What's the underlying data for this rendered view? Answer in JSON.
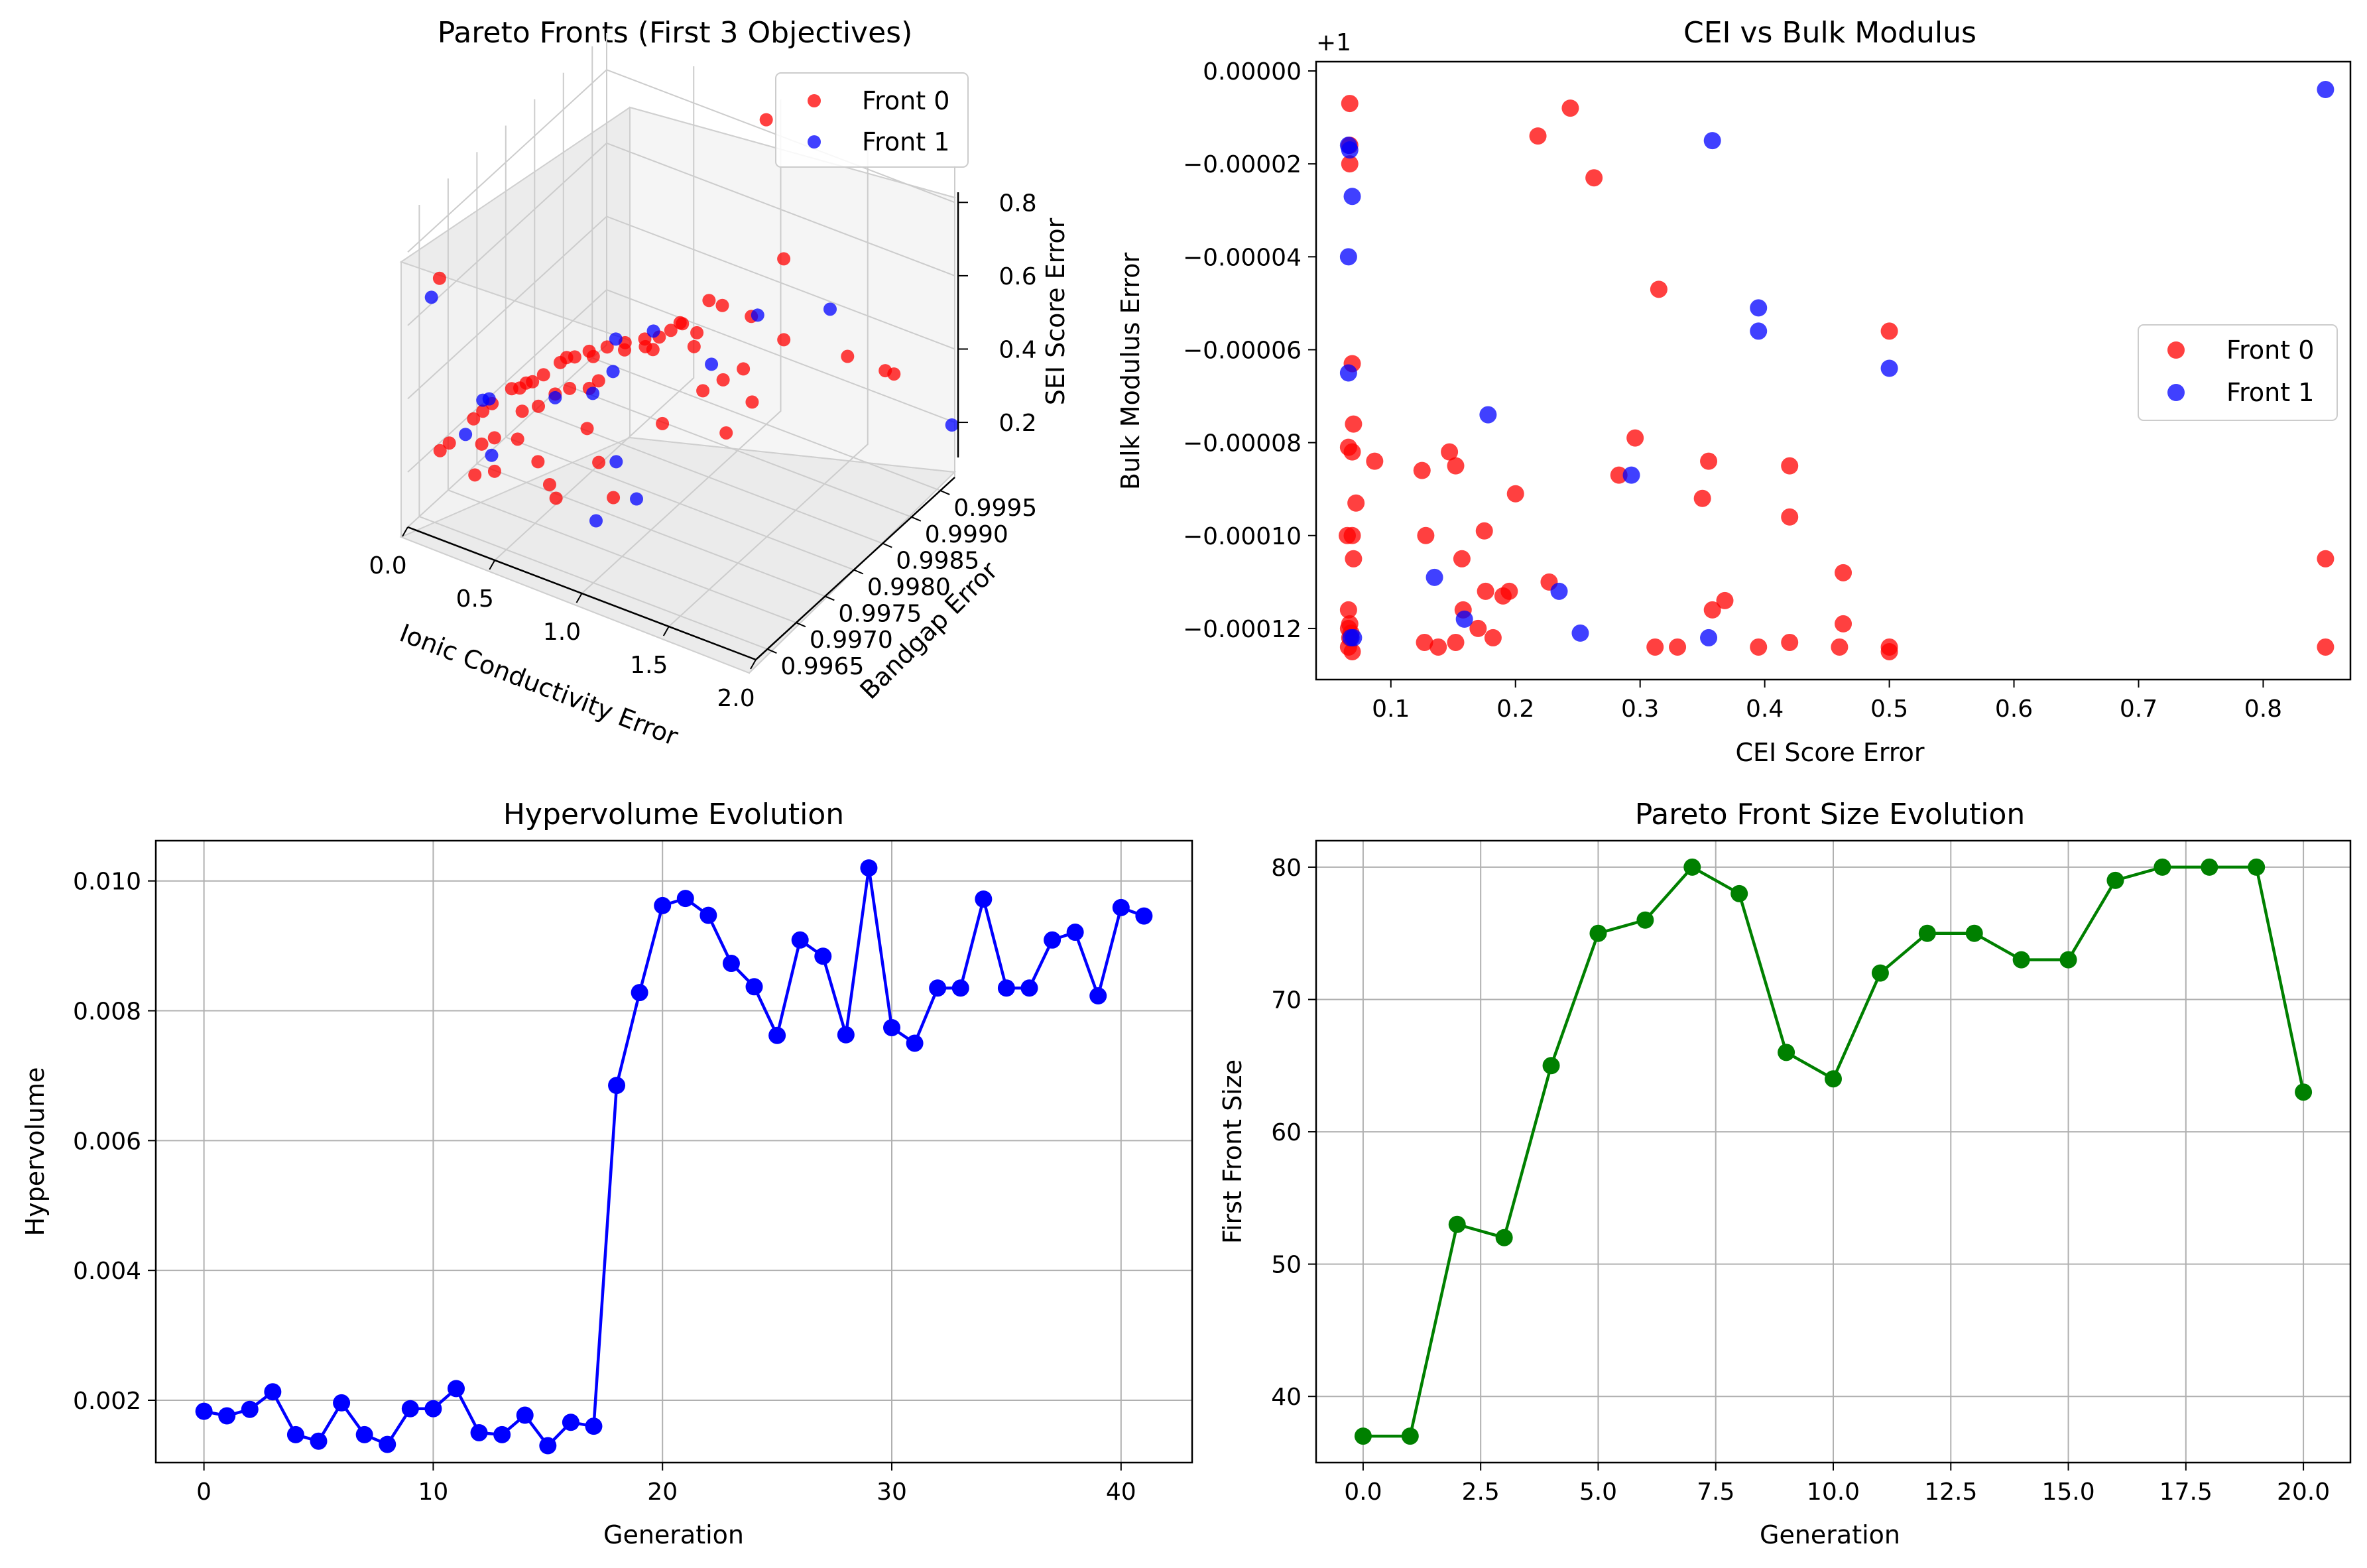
{
  "figure": {
    "background": "#ffffff"
  },
  "colors": {
    "front0": "#ff0000",
    "front1": "#0000ff",
    "size_line": "#008000",
    "grid": "#b0b0b0"
  },
  "chart_data": [
    {
      "type": "scatter",
      "projection": "3d",
      "title": "Pareto Fronts (First 3 Objectives)",
      "xlabel": "Ionic Conductivity Error",
      "ylabel": "Bandgap Error",
      "zlabel": "SEI Score Error",
      "x_ticks": [
        "0.0",
        "0.5",
        "1.0",
        "1.5",
        "2.0"
      ],
      "y_ticks": [
        "0.9965",
        "0.9970",
        "0.9975",
        "0.9980",
        "0.9985",
        "0.9990",
        "0.9995"
      ],
      "z_ticks": [
        "0.2",
        "0.4",
        "0.6",
        "0.8"
      ],
      "xlim": [
        0,
        2.0
      ],
      "ylim": [
        0.9963,
        0.99975
      ],
      "zlim": [
        0.05,
        0.9
      ],
      "legend": {
        "placement": "top-right",
        "entries": [
          "Front 0",
          "Front 1"
        ]
      },
      "series": [
        {
          "name": "Front 0",
          "color": "#ff0000",
          "points": [
            [
              0.95,
              0.99965,
              0.85
            ],
            [
              0.05,
              0.9967,
              0.68
            ],
            [
              1.15,
              0.99935,
              0.55
            ],
            [
              0.82,
              0.99905,
              0.42
            ],
            [
              0.88,
              0.9991,
              0.41
            ],
            [
              1.03,
              0.99915,
              0.4
            ],
            [
              0.75,
              0.9988,
              0.38
            ],
            [
              0.7,
              0.99875,
              0.36
            ],
            [
              0.72,
              0.99885,
              0.37
            ],
            [
              0.65,
              0.9987,
              0.34
            ],
            [
              0.6,
              0.9986,
              0.34
            ],
            [
              0.52,
              0.9985,
              0.33
            ],
            [
              0.45,
              0.9984,
              0.32
            ],
            [
              0.38,
              0.9983,
              0.31
            ],
            [
              0.62,
              0.99855,
              0.33
            ],
            [
              0.33,
              0.9982,
              0.3
            ],
            [
              0.3,
              0.99815,
              0.3
            ],
            [
              0.28,
              0.9981,
              0.29
            ],
            [
              0.42,
              0.99825,
              0.31
            ],
            [
              0.25,
              0.9979,
              0.28
            ],
            [
              0.22,
              0.9978,
              0.27
            ],
            [
              0.2,
              0.99775,
              0.27
            ],
            [
              0.18,
              0.9977,
              0.26
            ],
            [
              0.15,
              0.99765,
              0.26
            ],
            [
              0.55,
              0.9984,
              0.33
            ],
            [
              0.68,
              0.9985,
              0.34
            ],
            [
              0.85,
              0.9987,
              0.35
            ],
            [
              0.8,
              0.9989,
              0.35
            ],
            [
              1.2,
              0.9992,
              0.36
            ],
            [
              1.5,
              0.9994,
              0.34
            ],
            [
              1.7,
              0.99945,
              0.33
            ],
            [
              1.75,
              0.99945,
              0.33
            ],
            [
              1.1,
              0.9988,
              0.32
            ],
            [
              1.05,
              0.9986,
              0.31
            ],
            [
              1.0,
              0.9984,
              0.3
            ],
            [
              1.25,
              0.9985,
              0.3
            ],
            [
              0.5,
              0.9981,
              0.28
            ],
            [
              0.48,
              0.998,
              0.27
            ],
            [
              0.4,
              0.9979,
              0.27
            ],
            [
              0.35,
              0.9978,
              0.26
            ],
            [
              0.32,
              0.9976,
              0.25
            ],
            [
              0.1,
              0.9973,
              0.24
            ],
            [
              0.08,
              0.9972,
              0.23
            ],
            [
              0.12,
              0.9974,
              0.25
            ],
            [
              0.26,
              0.9975,
              0.24
            ],
            [
              0.6,
              0.9976,
              0.24
            ],
            [
              0.9,
              0.998,
              0.25
            ],
            [
              1.2,
              0.9982,
              0.25
            ],
            [
              0.2,
              0.9972,
              0.2
            ],
            [
              0.16,
              0.9971,
              0.19
            ],
            [
              0.3,
              0.9973,
              0.2
            ],
            [
              0.45,
              0.9972,
              0.18
            ],
            [
              0.7,
              0.9975,
              0.18
            ],
            [
              0.55,
              0.9971,
              0.15
            ],
            [
              0.62,
              0.997,
              0.14
            ],
            [
              0.85,
              0.9973,
              0.14
            ],
            [
              0.04,
              0.9969,
              0.2
            ],
            [
              0.02,
              0.9968,
              0.19
            ],
            [
              0.3,
              0.9969,
              0.17
            ],
            [
              0.22,
              0.9968,
              0.16
            ]
          ]
        },
        {
          "name": "Front 1",
          "color": "#0000ff",
          "points": [
            [
              0.02,
              0.99665,
              0.63
            ],
            [
              1.35,
              0.99955,
              0.42
            ],
            [
              1.05,
              0.9992,
              0.4
            ],
            [
              0.6,
              0.99875,
              0.34
            ],
            [
              0.45,
              0.99855,
              0.32
            ],
            [
              0.95,
              0.9987,
              0.32
            ],
            [
              0.55,
              0.9982,
              0.3
            ],
            [
              0.1,
              0.9973,
              0.27
            ],
            [
              0.12,
              0.99735,
              0.27
            ],
            [
              0.5,
              0.998,
              0.26
            ],
            [
              0.35,
              0.9978,
              0.25
            ],
            [
              0.8,
              0.9975,
              0.2
            ],
            [
              0.1,
              0.997,
              0.22
            ],
            [
              0.25,
              0.997,
              0.19
            ],
            [
              0.95,
              0.9974,
              0.14
            ],
            [
              0.85,
              0.997,
              0.12
            ],
            [
              2.0,
              0.9997,
              0.2
            ]
          ]
        }
      ]
    },
    {
      "type": "scatter",
      "title": "CEI vs Bulk Modulus",
      "xlabel": "CEI Score Error",
      "ylabel": "Bulk Modulus Error",
      "offset_text": "+1",
      "xlim": [
        0.04,
        0.87
      ],
      "ylim": [
        -0.000131,
        2e-06
      ],
      "x_ticks": [
        0.1,
        0.2,
        0.3,
        0.4,
        0.5,
        0.6,
        0.7,
        0.8
      ],
      "x_tick_labels": [
        "0.1",
        "0.2",
        "0.3",
        "0.4",
        "0.5",
        "0.6",
        "0.7",
        "0.8"
      ],
      "y_ticks": [
        0,
        -2e-05,
        -4e-05,
        -6e-05,
        -8e-05,
        -0.0001,
        -0.00012
      ],
      "y_tick_labels": [
        "0.00000",
        "−0.00002",
        "−0.00004",
        "−0.00006",
        "−0.00008",
        "−0.00010",
        "−0.00012"
      ],
      "legend": {
        "placement": "center-right",
        "entries": [
          "Front 0",
          "Front 1"
        ]
      },
      "series": [
        {
          "name": "Front 0",
          "color": "#ff0000",
          "points": [
            [
              0.067,
              -7e-06
            ],
            [
              0.067,
              -1.6e-05
            ],
            [
              0.067,
              -2e-05
            ],
            [
              0.069,
              -6.3e-05
            ],
            [
              0.07,
              -7.6e-05
            ],
            [
              0.066,
              -8.1e-05
            ],
            [
              0.069,
              -8.2e-05
            ],
            [
              0.072,
              -9.3e-05
            ],
            [
              0.065,
              -0.0001
            ],
            [
              0.069,
              -0.0001
            ],
            [
              0.07,
              -0.000105
            ],
            [
              0.066,
              -0.000116
            ],
            [
              0.067,
              -0.000119
            ],
            [
              0.066,
              -0.00012
            ],
            [
              0.068,
              -0.000121
            ],
            [
              0.067,
              -0.000122
            ],
            [
              0.066,
              -0.000124
            ],
            [
              0.069,
              -0.000125
            ],
            [
              0.087,
              -8.4e-05
            ],
            [
              0.125,
              -8.6e-05
            ],
            [
              0.128,
              -0.0001
            ],
            [
              0.127,
              -0.000123
            ],
            [
              0.138,
              -0.000124
            ],
            [
              0.147,
              -8.2e-05
            ],
            [
              0.152,
              -8.5e-05
            ],
            [
              0.152,
              -0.000123
            ],
            [
              0.157,
              -0.000105
            ],
            [
              0.158,
              -0.000116
            ],
            [
              0.17,
              -0.00012
            ],
            [
              0.175,
              -9.9e-05
            ],
            [
              0.176,
              -0.000112
            ],
            [
              0.182,
              -0.000122
            ],
            [
              0.19,
              -0.000113
            ],
            [
              0.195,
              -0.000112
            ],
            [
              0.2,
              -9.1e-05
            ],
            [
              0.218,
              -1.4e-05
            ],
            [
              0.227,
              -0.00011
            ],
            [
              0.244,
              -8e-06
            ],
            [
              0.263,
              -2.3e-05
            ],
            [
              0.283,
              -8.7e-05
            ],
            [
              0.296,
              -7.9e-05
            ],
            [
              0.312,
              -0.000124
            ],
            [
              0.315,
              -4.7e-05
            ],
            [
              0.33,
              -0.000124
            ],
            [
              0.35,
              -9.2e-05
            ],
            [
              0.355,
              -8.4e-05
            ],
            [
              0.358,
              -0.000116
            ],
            [
              0.368,
              -0.000114
            ],
            [
              0.395,
              -0.000124
            ],
            [
              0.42,
              -8.5e-05
            ],
            [
              0.42,
              -9.6e-05
            ],
            [
              0.42,
              -0.000123
            ],
            [
              0.46,
              -0.000124
            ],
            [
              0.463,
              -0.000108
            ],
            [
              0.463,
              -0.000119
            ],
            [
              0.5,
              -5.6e-05
            ],
            [
              0.5,
              -0.000124
            ],
            [
              0.5,
              -0.000125
            ],
            [
              0.85,
              -0.000105
            ],
            [
              0.85,
              -0.000124
            ]
          ]
        },
        {
          "name": "Front 1",
          "color": "#0000ff",
          "points": [
            [
              0.066,
              -1.6e-05
            ],
            [
              0.067,
              -1.7e-05
            ],
            [
              0.069,
              -2.7e-05
            ],
            [
              0.066,
              -4e-05
            ],
            [
              0.066,
              -6.5e-05
            ],
            [
              0.068,
              -0.000122
            ],
            [
              0.07,
              -0.000122
            ],
            [
              0.135,
              -0.000109
            ],
            [
              0.159,
              -0.000118
            ],
            [
              0.178,
              -7.4e-05
            ],
            [
              0.235,
              -0.000112
            ],
            [
              0.252,
              -0.000121
            ],
            [
              0.293,
              -8.7e-05
            ],
            [
              0.355,
              -0.000122
            ],
            [
              0.358,
              -1.5e-05
            ],
            [
              0.395,
              -5.1e-05
            ],
            [
              0.395,
              -5.6e-05
            ],
            [
              0.5,
              -6.4e-05
            ],
            [
              0.85,
              -4e-06
            ]
          ]
        }
      ]
    },
    {
      "type": "line",
      "title": "Hypervolume Evolution",
      "xlabel": "Generation",
      "ylabel": "Hypervolume",
      "color": "#0000ff",
      "marker": "circle",
      "grid": true,
      "xlim": [
        -2.1,
        43.1
      ],
      "ylim": [
        0.00104,
        0.01062
      ],
      "x_ticks": [
        0,
        10,
        20,
        30,
        40
      ],
      "x_tick_labels": [
        "0",
        "10",
        "20",
        "30",
        "40"
      ],
      "y_ticks": [
        0.002,
        0.004,
        0.006,
        0.008,
        0.01
      ],
      "y_tick_labels": [
        "0.002",
        "0.004",
        "0.006",
        "0.008",
        "0.010"
      ],
      "x": [
        0,
        1,
        2,
        3,
        4,
        5,
        6,
        7,
        8,
        9,
        10,
        11,
        12,
        13,
        14,
        15,
        16,
        17,
        18,
        19,
        20,
        21,
        22,
        23,
        24,
        25,
        26,
        27,
        28,
        29,
        30,
        31,
        32,
        33,
        34,
        35,
        36,
        37,
        38,
        39,
        40,
        41
      ],
      "values": [
        0.00183,
        0.00176,
        0.00186,
        0.00213,
        0.00147,
        0.00137,
        0.00196,
        0.00147,
        0.00132,
        0.00187,
        0.00187,
        0.00218,
        0.0015,
        0.00147,
        0.00177,
        0.0013,
        0.00166,
        0.0016,
        0.00685,
        0.00828,
        0.00962,
        0.00973,
        0.00947,
        0.00873,
        0.00837,
        0.00762,
        0.00909,
        0.00884,
        0.00763,
        0.0102,
        0.00774,
        0.0075,
        0.00835,
        0.00835,
        0.00972,
        0.00835,
        0.00835,
        0.00909,
        0.00921,
        0.00823,
        0.00959,
        0.00946
      ]
    },
    {
      "type": "line",
      "title": "Pareto Front Size Evolution",
      "xlabel": "Generation",
      "ylabel": "First Front Size",
      "color": "#008000",
      "marker": "circle",
      "grid": true,
      "xlim": [
        -1.0,
        21.0
      ],
      "ylim": [
        35.0,
        82.0
      ],
      "x_ticks": [
        0,
        2.5,
        5,
        7.5,
        10,
        12.5,
        15,
        17.5,
        20
      ],
      "x_tick_labels": [
        "0.0",
        "2.5",
        "5.0",
        "7.5",
        "10.0",
        "12.5",
        "15.0",
        "17.5",
        "20.0"
      ],
      "y_ticks": [
        40,
        50,
        60,
        70,
        80
      ],
      "y_tick_labels": [
        "40",
        "50",
        "60",
        "70",
        "80"
      ],
      "x": [
        0,
        1,
        2,
        3,
        4,
        5,
        6,
        7,
        8,
        9,
        10,
        11,
        12,
        13,
        14,
        15,
        16,
        17,
        18,
        19,
        20
      ],
      "values": [
        37,
        37,
        53,
        52,
        65,
        75,
        76,
        80,
        78,
        66,
        64,
        72,
        75,
        75,
        73,
        73,
        79,
        80,
        80,
        80,
        63
      ]
    }
  ]
}
